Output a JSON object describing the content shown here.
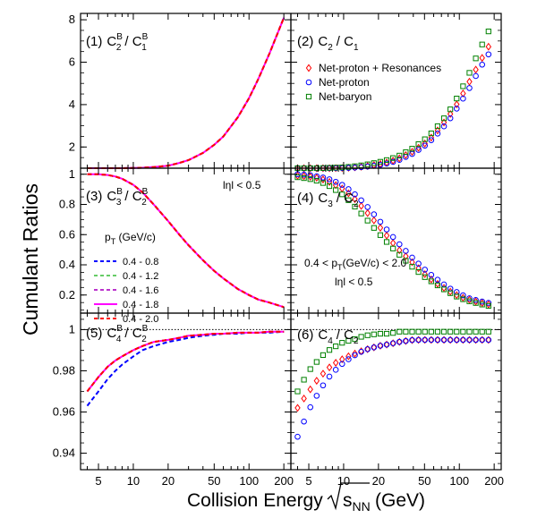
{
  "figure": {
    "ylabel": "Cumulant Ratios",
    "xlabel": "Collision Energy",
    "xlabel_root": "s",
    "xlabel_sub": "NN",
    "xlabel_unit": "(GeV)",
    "x_ticks": [
      5,
      10,
      20,
      50,
      100,
      200
    ],
    "x_tick_labels": [
      "5",
      "10",
      "20",
      "50",
      "100",
      "200"
    ],
    "xlim": [
      3.5,
      230
    ],
    "x_scale": "log"
  },
  "panel_titles": {
    "p1": {
      "num": "(1)",
      "a": "C",
      "a_sub": "2",
      "a_sup": "B",
      "b": "C",
      "b_sub": "1",
      "b_sup": "B"
    },
    "p2": {
      "num": "(2)",
      "a": "C",
      "a_sub": "2",
      "b": "C",
      "b_sub": "1"
    },
    "p3": {
      "num": "(3)",
      "a": "C",
      "a_sub": "3",
      "a_sup": "B",
      "b": "C",
      "b_sub": "2",
      "b_sup": "B"
    },
    "p4": {
      "num": "(4)",
      "a": "C",
      "a_sub": "3",
      "b": "C",
      "b_sub": "2"
    },
    "p5": {
      "num": "(5)",
      "a": "C",
      "a_sub": "4",
      "a_sup": "B",
      "b": "C",
      "b_sub": "2",
      "b_sup": "B"
    },
    "p6": {
      "num": "(6)",
      "a": "C",
      "a_sub": "4",
      "b": "C",
      "b_sub": "2"
    }
  },
  "annotations": {
    "eta_top": "lηl < 0.5",
    "pt_range_pre": "0.4 < p",
    "pt_range_sub": "T",
    "pt_range_post": "(GeV/c) < 2.0",
    "eta_mid": "lηl < 0.5"
  },
  "legend_markers": [
    {
      "name": "Net-proton + Resonances",
      "color": "#ff0000",
      "marker": "diamond"
    },
    {
      "name": "Net-proton",
      "color": "#0000ff",
      "marker": "circle"
    },
    {
      "name": "Net-baryon",
      "color": "#008000",
      "marker": "square"
    }
  ],
  "legend_lines": {
    "title_pre": "p",
    "title_sub": "T",
    "title_post": " (GeV/c)",
    "entries": [
      {
        "name": "0.4 - 0.8",
        "color": "#0000ff",
        "dash": "dashed"
      },
      {
        "name": "0.4 - 1.2",
        "color": "#66cc66",
        "dash": "dashed"
      },
      {
        "name": "0.4 - 1.6",
        "color": "#bb33cc",
        "dash": "dashed"
      },
      {
        "name": "0.4 - 1.8",
        "color": "#ff00ff",
        "dash": "solid"
      },
      {
        "name": "0.4 - 2.0",
        "color": "#ff0000",
        "dash": "dashed"
      }
    ]
  },
  "chart_data": [
    {
      "type": "line",
      "panel": "p1",
      "ylim": [
        1,
        8.3
      ],
      "y_ticks": [
        2,
        4,
        6,
        8
      ],
      "y_tick_labels": [
        "2",
        "4",
        "6",
        "8"
      ],
      "x": [
        4,
        5,
        6,
        7,
        8,
        10,
        12,
        15,
        20,
        25,
        30,
        40,
        50,
        60,
        80,
        100,
        120,
        150,
        200
      ],
      "series": [
        {
          "name": "0.4 - 2.0",
          "values": [
            1.0,
            1.0,
            1.0,
            1.0,
            1.0,
            1.01,
            1.02,
            1.05,
            1.12,
            1.25,
            1.38,
            1.72,
            2.1,
            2.5,
            3.4,
            4.3,
            5.2,
            6.4,
            8.1
          ]
        }
      ]
    },
    {
      "type": "scatter",
      "panel": "p2",
      "ylim": [
        1,
        8.3
      ],
      "y_ticks": [
        2,
        4,
        6,
        8
      ],
      "y_tick_labels": [
        "2",
        "4",
        "6",
        "8"
      ],
      "x": [
        4,
        5,
        6,
        7,
        8,
        10,
        12,
        15,
        20,
        25,
        30,
        40,
        50,
        60,
        80,
        100,
        120,
        150,
        200
      ],
      "series": [
        {
          "name": "Net-proton + Resonances",
          "values": [
            1.0,
            1.0,
            1.0,
            1.0,
            1.0,
            1.01,
            1.03,
            1.08,
            1.18,
            1.3,
            1.45,
            1.8,
            2.15,
            2.55,
            3.4,
            4.2,
            5.0,
            6.0,
            7.2
          ]
        },
        {
          "name": "Net-proton",
          "values": [
            1.0,
            1.0,
            1.0,
            1.0,
            1.0,
            1.01,
            1.02,
            1.06,
            1.14,
            1.25,
            1.38,
            1.7,
            2.05,
            2.42,
            3.2,
            4.0,
            4.7,
            5.7,
            6.8
          ]
        },
        {
          "name": "Net-baryon",
          "values": [
            1.0,
            1.0,
            1.0,
            1.01,
            1.02,
            1.04,
            1.08,
            1.15,
            1.28,
            1.42,
            1.58,
            1.95,
            2.35,
            2.75,
            3.6,
            4.5,
            5.4,
            6.6,
            8.0
          ]
        }
      ]
    },
    {
      "type": "line",
      "panel": "p3",
      "ylim": [
        0.08,
        1.04
      ],
      "y_ticks": [
        0.2,
        0.4,
        0.6,
        0.8,
        1
      ],
      "y_tick_labels": [
        "0.2",
        "0.4",
        "0.6",
        "0.8",
        "1"
      ],
      "x": [
        4,
        5,
        6,
        7,
        8,
        10,
        12,
        15,
        20,
        25,
        30,
        40,
        50,
        60,
        80,
        100,
        120,
        150,
        200
      ],
      "series": [
        {
          "name": "0.4 - 2.0",
          "values": [
            1.0,
            1.0,
            0.995,
            0.985,
            0.97,
            0.93,
            0.88,
            0.8,
            0.69,
            0.6,
            0.53,
            0.43,
            0.36,
            0.31,
            0.24,
            0.2,
            0.17,
            0.15,
            0.12
          ]
        }
      ]
    },
    {
      "type": "scatter",
      "panel": "p4",
      "ylim": [
        0.08,
        1.04
      ],
      "y_ticks": [
        0.2,
        0.4,
        0.6,
        0.8,
        1
      ],
      "y_tick_labels": [
        "0.2",
        "0.4",
        "0.6",
        "0.8",
        "1"
      ],
      "x": [
        4,
        5,
        6,
        7,
        8,
        10,
        12,
        15,
        20,
        25,
        30,
        40,
        50,
        60,
        80,
        100,
        120,
        150,
        200
      ],
      "series": [
        {
          "name": "Net-proton + Resonances",
          "values": [
            0.99,
            0.985,
            0.975,
            0.96,
            0.94,
            0.9,
            0.85,
            0.77,
            0.66,
            0.57,
            0.5,
            0.41,
            0.34,
            0.29,
            0.23,
            0.19,
            0.17,
            0.15,
            0.13
          ]
        },
        {
          "name": "Net-proton",
          "values": [
            1.0,
            0.995,
            0.985,
            0.975,
            0.96,
            0.925,
            0.88,
            0.81,
            0.7,
            0.61,
            0.54,
            0.44,
            0.37,
            0.32,
            0.25,
            0.21,
            0.18,
            0.16,
            0.14
          ]
        },
        {
          "name": "Net-baryon",
          "values": [
            0.98,
            0.97,
            0.955,
            0.935,
            0.91,
            0.86,
            0.8,
            0.72,
            0.61,
            0.53,
            0.47,
            0.38,
            0.32,
            0.28,
            0.22,
            0.18,
            0.16,
            0.14,
            0.12
          ]
        }
      ]
    },
    {
      "type": "line",
      "panel": "p5",
      "ylim": [
        0.932,
        1.008
      ],
      "y_ticks": [
        0.94,
        0.96,
        0.98,
        1
      ],
      "y_tick_labels": [
        "0.94",
        "0.96",
        "0.98",
        "1"
      ],
      "reference_line": 1,
      "x": [
        4,
        5,
        6,
        7,
        8,
        10,
        12,
        15,
        20,
        25,
        30,
        40,
        50,
        60,
        80,
        100,
        120,
        150,
        200
      ],
      "series": [
        {
          "name": "0.4 - 0.8",
          "values": [
            0.963,
            0.97,
            0.976,
            0.98,
            0.983,
            0.987,
            0.99,
            0.992,
            0.994,
            0.995,
            0.996,
            0.997,
            0.9975,
            0.998,
            0.998,
            0.9985,
            0.9985,
            0.9985,
            0.999
          ]
        },
        {
          "name": "0.4 - 2.0",
          "values": [
            0.97,
            0.977,
            0.982,
            0.985,
            0.987,
            0.99,
            0.992,
            0.994,
            0.995,
            0.996,
            0.997,
            0.9975,
            0.998,
            0.998,
            0.9985,
            0.9985,
            0.9985,
            0.999,
            0.999
          ]
        }
      ]
    },
    {
      "type": "scatter",
      "panel": "p6",
      "ylim": [
        0.932,
        1.008
      ],
      "y_ticks": [
        0.94,
        0.96,
        0.98,
        1
      ],
      "y_tick_labels": [
        "0.94",
        "0.96",
        "0.98",
        "1"
      ],
      "reference_line": 1,
      "x": [
        4,
        5,
        6,
        7,
        8,
        10,
        12,
        15,
        20,
        25,
        30,
        40,
        50,
        60,
        80,
        100,
        120,
        150,
        200
      ],
      "series": [
        {
          "name": "Net-proton + Resonances",
          "values": [
            0.962,
            0.97,
            0.976,
            0.98,
            0.983,
            0.986,
            0.988,
            0.99,
            0.992,
            0.993,
            0.994,
            0.995,
            0.995,
            0.995,
            0.995,
            0.995,
            0.995,
            0.995,
            0.995
          ]
        },
        {
          "name": "Net-proton",
          "values": [
            0.948,
            0.961,
            0.969,
            0.975,
            0.979,
            0.984,
            0.987,
            0.99,
            0.992,
            0.993,
            0.994,
            0.995,
            0.995,
            0.995,
            0.995,
            0.995,
            0.995,
            0.995,
            0.995
          ]
        },
        {
          "name": "Net-baryon",
          "values": [
            0.97,
            0.98,
            0.985,
            0.989,
            0.991,
            0.994,
            0.995,
            0.997,
            0.998,
            0.998,
            0.999,
            0.999,
            0.999,
            0.999,
            0.999,
            0.999,
            0.999,
            0.999,
            0.999
          ]
        }
      ]
    }
  ]
}
